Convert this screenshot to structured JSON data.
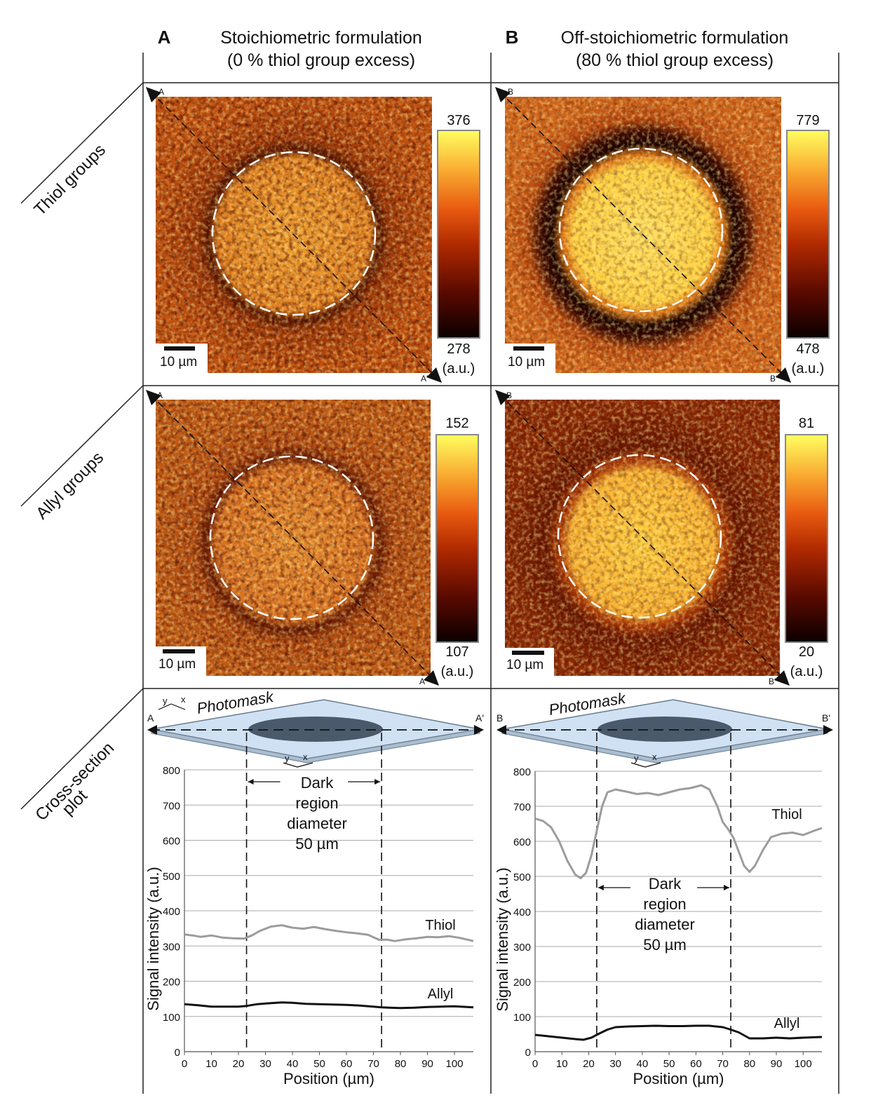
{
  "columns": [
    {
      "letter": "A",
      "title_line1": "Stoichiometric formulation",
      "title_line2": "(0 % thiol group excess)"
    },
    {
      "letter": "B",
      "title_line1": "Off-stoichiometric formulation",
      "title_line2": "(80 % thiol group excess)"
    }
  ],
  "row_labels": {
    "thiol": "Thiol groups",
    "allyl": "Allyl groups",
    "cross_line1": "Cross-section",
    "cross_line2": "plot"
  },
  "maps": [
    {
      "marker_start": "A",
      "marker_end": "A'",
      "scale_text": "10 µm",
      "cb_max": "376",
      "cb_min": "278",
      "cb_unit": "(a.u.)"
    },
    {
      "marker_start": "B",
      "marker_end": "B'",
      "scale_text": "10 µm",
      "cb_max": "779",
      "cb_min": "478",
      "cb_unit": "(a.u.)"
    },
    {
      "marker_start": "A",
      "marker_end": "A'",
      "scale_text": "10 µm",
      "cb_max": "152",
      "cb_min": "107",
      "cb_unit": "(a.u.)"
    },
    {
      "marker_start": "B",
      "marker_end": "B'",
      "scale_text": "10 µm",
      "cb_max": "81",
      "cb_min": "20",
      "cb_unit": "(a.u.)"
    }
  ],
  "photomask": [
    {
      "label": "Photomask",
      "start": "A",
      "end": "A'",
      "axis_y": "y",
      "axis_x": "x"
    },
    {
      "label": "Photomask",
      "start": "B",
      "end": "B'",
      "axis_y": "y",
      "axis_x": "x"
    }
  ],
  "colors": {
    "thiol_line": "#9c9c9c",
    "allyl_line": "#111111",
    "mask_fill": "#cfe1f3",
    "mask_dark": "#4a5a6a"
  },
  "chart_data": [
    {
      "type": "line",
      "xlabel": "Position (µm)",
      "ylabel": "Signal intensity (a.u.)",
      "xlim": [
        0,
        107
      ],
      "ylim": [
        0,
        800
      ],
      "xticks": [
        0,
        10,
        20,
        30,
        40,
        50,
        60,
        70,
        80,
        90,
        100
      ],
      "yticks": [
        0,
        100,
        200,
        300,
        400,
        500,
        600,
        700,
        800
      ],
      "grid": true,
      "annotation_lines": [
        "Dark",
        "region",
        "diameter",
        "50 µm"
      ],
      "dark_region": [
        23,
        73
      ],
      "series": [
        {
          "name": "Thiol",
          "x": [
            0,
            3,
            6,
            10,
            14,
            18,
            22,
            25,
            28,
            32,
            36,
            40,
            44,
            48,
            52,
            56,
            60,
            64,
            68,
            72,
            75,
            78,
            82,
            86,
            90,
            94,
            98,
            102,
            107
          ],
          "y": [
            333,
            330,
            326,
            330,
            324,
            322,
            321,
            330,
            343,
            355,
            359,
            352,
            349,
            354,
            348,
            343,
            339,
            336,
            332,
            318,
            318,
            314,
            319,
            322,
            326,
            325,
            328,
            323,
            314
          ]
        },
        {
          "name": "Allyl",
          "x": [
            0,
            5,
            10,
            15,
            20,
            23,
            27,
            32,
            36,
            40,
            45,
            50,
            55,
            60,
            65,
            70,
            73,
            76,
            80,
            85,
            90,
            95,
            100,
            107
          ],
          "y": [
            135,
            132,
            128,
            128,
            128,
            130,
            135,
            138,
            140,
            139,
            136,
            135,
            134,
            133,
            131,
            128,
            126,
            125,
            124,
            125,
            127,
            128,
            129,
            126
          ]
        }
      ]
    },
    {
      "type": "line",
      "xlabel": "Position (µm)",
      "ylabel": "Signal intensity (a.u.)",
      "xlim": [
        0,
        107
      ],
      "ylim": [
        0,
        800
      ],
      "xticks": [
        0,
        10,
        20,
        30,
        40,
        50,
        60,
        70,
        80,
        90,
        100
      ],
      "yticks": [
        0,
        100,
        200,
        300,
        400,
        500,
        600,
        700,
        800
      ],
      "grid": true,
      "annotation_lines": [
        "Dark",
        "region",
        "diameter",
        "50 µm"
      ],
      "dark_region": [
        23,
        73
      ],
      "series": [
        {
          "name": "Thiol",
          "x": [
            0,
            3,
            6,
            9,
            12,
            15,
            17,
            19,
            21,
            23,
            25,
            27,
            30,
            34,
            38,
            42,
            46,
            50,
            54,
            58,
            62,
            65,
            68,
            70,
            72,
            74,
            76,
            78,
            80,
            82,
            85,
            88,
            92,
            96,
            100,
            104,
            107
          ],
          "y": [
            665,
            658,
            640,
            600,
            545,
            505,
            495,
            510,
            560,
            630,
            700,
            740,
            748,
            742,
            735,
            738,
            732,
            740,
            748,
            752,
            760,
            748,
            700,
            655,
            635,
            610,
            570,
            530,
            513,
            530,
            575,
            612,
            622,
            625,
            618,
            630,
            638
          ]
        },
        {
          "name": "Allyl",
          "x": [
            0,
            5,
            10,
            15,
            18,
            21,
            24,
            27,
            30,
            35,
            40,
            45,
            50,
            55,
            60,
            65,
            70,
            73,
            76,
            80,
            85,
            90,
            95,
            100,
            107
          ],
          "y": [
            48,
            44,
            40,
            36,
            34,
            40,
            52,
            63,
            70,
            72,
            73,
            74,
            73,
            73,
            74,
            74,
            70,
            63,
            55,
            38,
            38,
            40,
            38,
            40,
            42
          ]
        }
      ]
    }
  ]
}
